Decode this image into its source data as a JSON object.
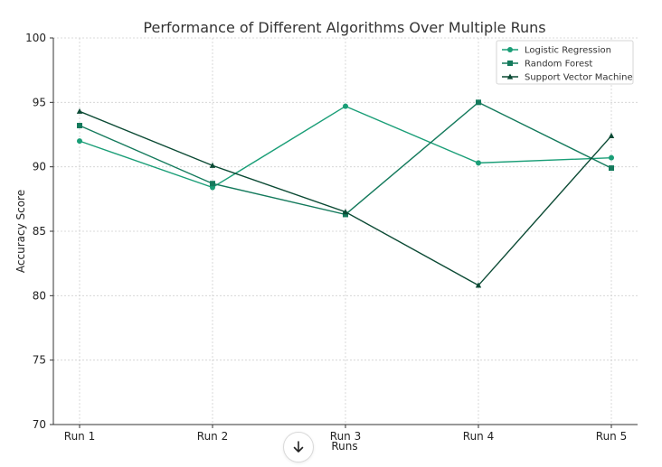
{
  "chart_data": {
    "type": "line",
    "title": "Performance of Different Algorithms Over Multiple Runs",
    "xlabel": "Runs",
    "ylabel": "Accuracy Score",
    "categories": [
      "Run 1",
      "Run 2",
      "Run 3",
      "Run 4",
      "Run 5"
    ],
    "ylim": [
      70,
      100
    ],
    "yticks": [
      70,
      75,
      80,
      85,
      90,
      95,
      100
    ],
    "grid": true,
    "legend_position": "top-right",
    "series": [
      {
        "name": "Logistic Regression",
        "marker": "circle",
        "color": "#1a9e77",
        "values": [
          92.0,
          88.4,
          94.7,
          90.3,
          90.7
        ]
      },
      {
        "name": "Random Forest",
        "marker": "square",
        "color": "#147a5c",
        "values": [
          93.2,
          88.7,
          86.3,
          95.0,
          89.9
        ]
      },
      {
        "name": "Support Vector Machine",
        "marker": "triangle",
        "color": "#0b4a34",
        "values": [
          94.3,
          90.1,
          86.5,
          80.8,
          92.4
        ]
      }
    ]
  },
  "ui": {
    "scroll_button_icon": "arrow-down-icon"
  }
}
